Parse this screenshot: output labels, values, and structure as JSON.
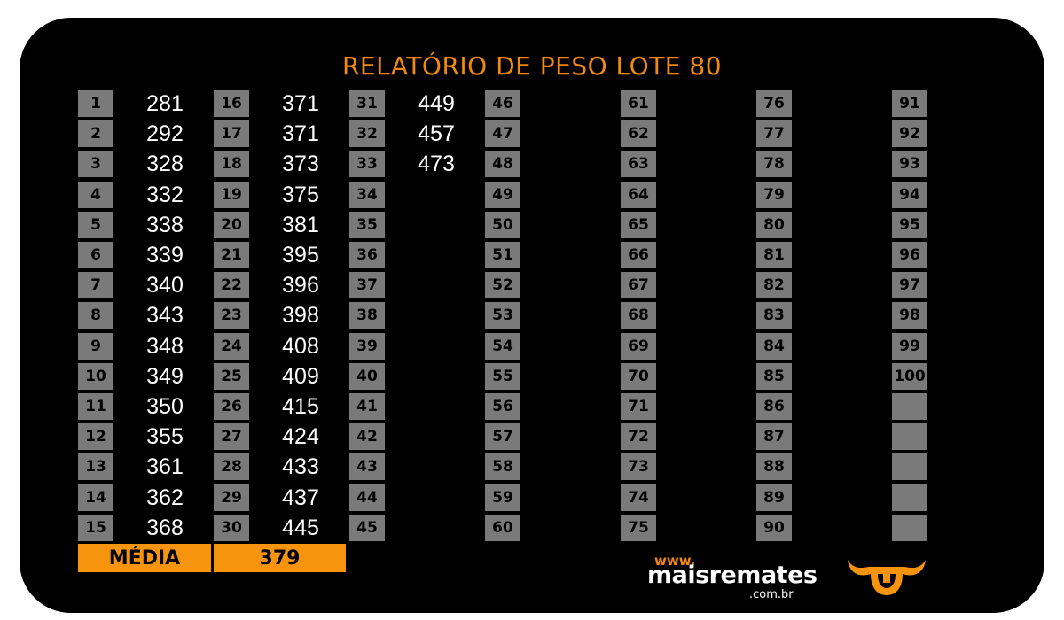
{
  "title": "RELATÓRIO DE PESO LOTE  80",
  "columns": [
    {
      "nums": [
        "1",
        "2",
        "3",
        "4",
        "5",
        "6",
        "7",
        "8",
        "9",
        "10",
        "11",
        "12",
        "13",
        "14",
        "15"
      ],
      "values": [
        "281",
        "292",
        "328",
        "332",
        "338",
        "339",
        "340",
        "343",
        "348",
        "349",
        "350",
        "355",
        "361",
        "362",
        "368"
      ]
    },
    {
      "nums": [
        "16",
        "17",
        "18",
        "19",
        "20",
        "21",
        "22",
        "23",
        "24",
        "25",
        "26",
        "27",
        "28",
        "29",
        "30"
      ],
      "values": [
        "371",
        "371",
        "373",
        "375",
        "381",
        "395",
        "396",
        "398",
        "408",
        "409",
        "415",
        "424",
        "433",
        "437",
        "445"
      ]
    },
    {
      "nums": [
        "31",
        "32",
        "33",
        "34",
        "35",
        "36",
        "37",
        "38",
        "39",
        "40",
        "41",
        "42",
        "43",
        "44",
        "45"
      ],
      "values": [
        "449",
        "457",
        "473",
        "",
        "",
        "",
        "",
        "",
        "",
        "",
        "",
        "",
        "",
        "",
        ""
      ]
    },
    {
      "nums": [
        "46",
        "47",
        "48",
        "49",
        "50",
        "51",
        "52",
        "53",
        "54",
        "55",
        "56",
        "57",
        "58",
        "59",
        "60"
      ],
      "values": []
    },
    {
      "nums": [
        "61",
        "62",
        "63",
        "64",
        "65",
        "66",
        "67",
        "68",
        "69",
        "70",
        "71",
        "72",
        "73",
        "74",
        "75"
      ],
      "values": []
    },
    {
      "nums": [
        "76",
        "77",
        "78",
        "79",
        "80",
        "81",
        "82",
        "83",
        "84",
        "85",
        "86",
        "87",
        "88",
        "89",
        "90"
      ],
      "values": []
    },
    {
      "nums": [
        "91",
        "92",
        "93",
        "94",
        "95",
        "96",
        "97",
        "98",
        "99",
        "100",
        "",
        "",
        "",
        "",
        ""
      ],
      "values": []
    }
  ],
  "media": {
    "label": "MÉDIA",
    "value": "379"
  },
  "logo": {
    "www": "www.",
    "name": "maisremates",
    "domain": ".com.br",
    "icon": "bull-horns-icon"
  },
  "colors": {
    "accent": "#f7940d",
    "cell": "#7a7a7a",
    "background": "#000000"
  }
}
